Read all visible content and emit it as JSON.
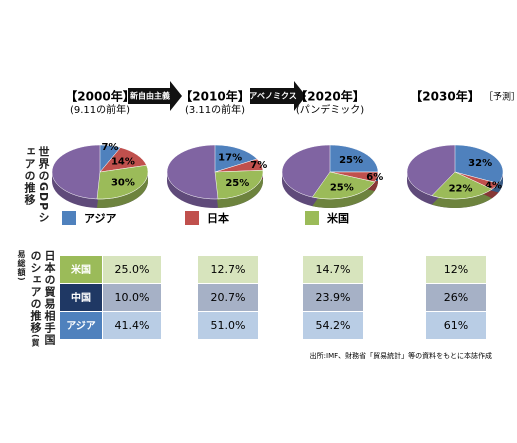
{
  "arrows": [
    "新自由主義",
    "アベノミクス"
  ],
  "gdp_label": [
    "世界のGDP",
    "シェアの推移"
  ],
  "legend": [
    {
      "name": "アジア",
      "color": "#4f81bd"
    },
    {
      "name": "日本",
      "color": "#c0504d"
    },
    {
      "name": "米国",
      "color": "#9bbb59"
    }
  ],
  "chart_data": [
    {
      "type": "pie",
      "title": "【2000年】",
      "subtitle": "(9.11の前年)",
      "values": [
        7,
        14,
        30
      ],
      "value_labels": [
        "7%",
        "14%",
        "30%"
      ]
    },
    {
      "type": "pie",
      "title": "【2010年】",
      "subtitle": "(3.11の前年)",
      "values": [
        17,
        7,
        25
      ],
      "value_labels": [
        "17%",
        "7%",
        "25%"
      ]
    },
    {
      "type": "pie",
      "title": "【2020年】",
      "subtitle": "(パンデミック)",
      "values": [
        25,
        6,
        25
      ],
      "value_labels": [
        "25%",
        "6%",
        "25%"
      ]
    },
    {
      "type": "pie",
      "title": "【2030年】",
      "subtitle": "［予測］",
      "values": [
        32,
        4,
        22
      ],
      "value_labels": [
        "32%",
        "4%",
        "22%"
      ]
    }
  ],
  "trade_label": [
    "日本の貿易相手国の",
    "シェアの推移",
    "(貿易総額)"
  ],
  "table": {
    "rows": [
      [
        "米国",
        "25.0%",
        "12.7%",
        "14.7%",
        "12%"
      ],
      [
        "中国",
        "10.0%",
        "20.7%",
        "23.9%",
        "26%"
      ],
      [
        "アジア",
        "41.4%",
        "51.0%",
        "54.2%",
        "61%"
      ]
    ]
  },
  "source": "出所:IMF、財務省「貿易統計」等の資料をもとに本誌作成"
}
